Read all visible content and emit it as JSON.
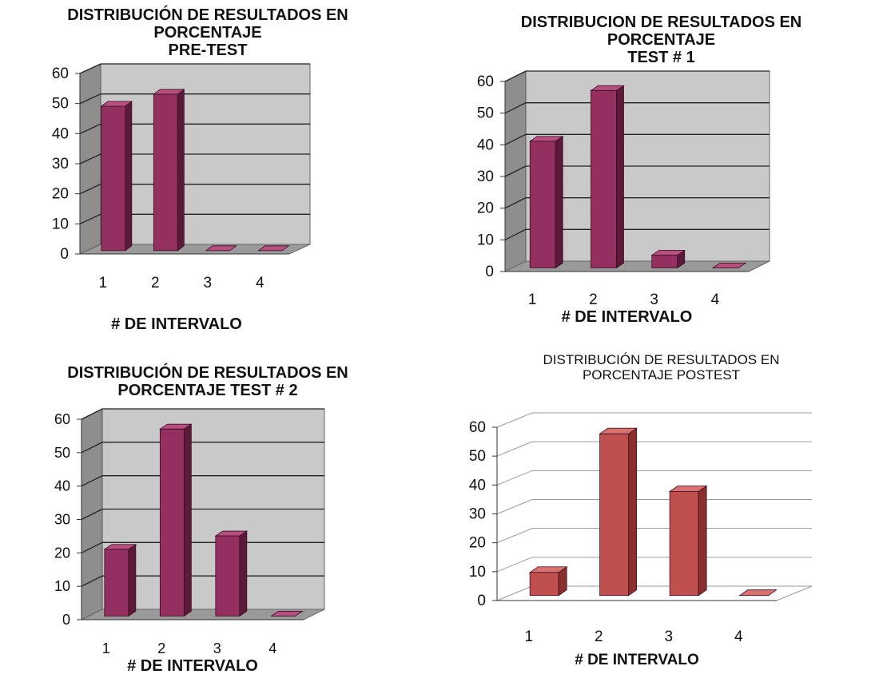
{
  "charts": [
    {
      "title_lines": [
        "DISTRIBUCIÓN DE RESULTADOS EN",
        "PORCENTAJE",
        "PRE-TEST"
      ],
      "xlabel": "# DE INTERVALO",
      "colors": {
        "front": "#93305f",
        "side": "#5c1a3a",
        "top": "#b84f80",
        "wall": "#c9c9c9",
        "wallSide": "#8e8e8e",
        "floor": "#9a9a9a"
      }
    },
    {
      "title_lines": [
        "DISTRIBUCION DE RESULTADOS EN",
        "PORCENTAJE",
        "TEST # 1"
      ],
      "xlabel": "# DE INTERVALO",
      "colors": {
        "front": "#93305f",
        "side": "#5c1a3a",
        "top": "#b84f80",
        "wall": "#c9c9c9",
        "wallSide": "#8e8e8e",
        "floor": "#9a9a9a"
      }
    },
    {
      "title_lines": [
        "DISTRIBUCIÓN DE RESULTADOS EN",
        "PORCENTAJE TEST # 2"
      ],
      "xlabel": "# DE INTERVALO",
      "colors": {
        "front": "#93305f",
        "side": "#5c1a3a",
        "top": "#b84f80",
        "wall": "#c9c9c9",
        "wallSide": "#8e8e8e",
        "floor": "#9a9a9a"
      }
    },
    {
      "title_lines": [
        "DISTRIBUCIÓN DE RESULTADOS EN",
        "PORCENTAJE POSTEST"
      ],
      "xlabel": "# DE INTERVALO",
      "colors": {
        "front": "#c0504d",
        "side": "#8c2e2b",
        "top": "#d9726f",
        "wall": "#ffffff",
        "wallSide": "#ffffff",
        "floor": "#ffffff"
      }
    }
  ],
  "chart_data": [
    {
      "type": "bar",
      "title": "DISTRIBUCIÓN DE RESULTADOS EN PORCENTAJE PRE-TEST",
      "categories": [
        "1",
        "2",
        "3",
        "4"
      ],
      "values": [
        48,
        52,
        0,
        0
      ],
      "xlabel": "# DE INTERVALO",
      "ylabel": "",
      "ylim": [
        0,
        60
      ],
      "yticks": [
        "0",
        "10",
        "20",
        "30",
        "40",
        "50",
        "60"
      ],
      "grid": true,
      "style": "3d"
    },
    {
      "type": "bar",
      "title": "DISTRIBUCION DE RESULTADOS EN PORCENTAJE TEST # 1",
      "categories": [
        "1",
        "2",
        "3",
        "4"
      ],
      "values": [
        40,
        56,
        4,
        0
      ],
      "xlabel": "# DE INTERVALO",
      "ylabel": "",
      "ylim": [
        0,
        60
      ],
      "yticks": [
        "0",
        "10",
        "20",
        "30",
        "40",
        "50",
        "60"
      ],
      "grid": true,
      "style": "3d"
    },
    {
      "type": "bar",
      "title": "DISTRIBUCIÓN DE RESULTADOS EN PORCENTAJE TEST # 2",
      "categories": [
        "1",
        "2",
        "3",
        "4"
      ],
      "values": [
        20,
        56,
        24,
        0
      ],
      "xlabel": "# DE INTERVALO",
      "ylabel": "",
      "ylim": [
        0,
        60
      ],
      "yticks": [
        "0",
        "10",
        "20",
        "30",
        "40",
        "50",
        "60"
      ],
      "grid": true,
      "style": "3d"
    },
    {
      "type": "bar",
      "title": "DISTRIBUCIÓN DE RESULTADOS EN PORCENTAJE POSTEST",
      "categories": [
        "1",
        "2",
        "3",
        "4"
      ],
      "values": [
        8,
        56,
        36,
        0
      ],
      "xlabel": "# DE INTERVALO",
      "ylabel": "",
      "ylim": [
        0,
        60
      ],
      "yticks": [
        "0",
        "10",
        "20",
        "30",
        "40",
        "50",
        "60"
      ],
      "grid": true,
      "style": "3d"
    }
  ]
}
